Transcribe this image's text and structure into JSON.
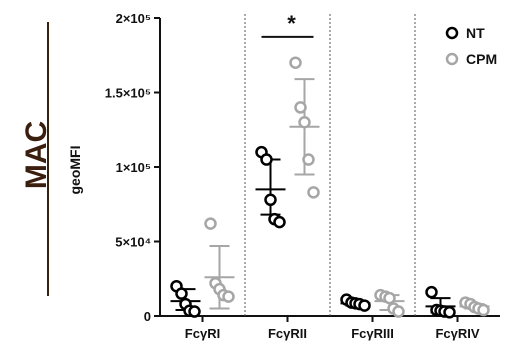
{
  "panel_label": "MAC",
  "chart_data": {
    "type": "scatter",
    "ylabel": "geoMFI",
    "ylim": [
      0,
      200000
    ],
    "yticks": [
      0,
      50000,
      100000,
      150000,
      200000
    ],
    "ytick_labels": [
      "0",
      "5×10⁴",
      "1×10⁵",
      "1.5×10⁵",
      "2×10⁵"
    ],
    "categories": [
      "FcγRI",
      "FcγRII",
      "FcγRIII",
      "FcγRIV"
    ],
    "grid": false,
    "category_dividers": true,
    "legend_position": "top-right",
    "series": [
      {
        "name": "NT",
        "color": "#000000",
        "groups": [
          {
            "points": [
              20000,
              15000,
              8000,
              3500,
              3000
            ],
            "mean": 10000,
            "sd_low": 4000,
            "sd_high": 18000
          },
          {
            "points": [
              110000,
              105000,
              78000,
              65000,
              63000
            ],
            "mean": 85000,
            "sd_low": 68000,
            "sd_high": 105000
          },
          {
            "points": [
              11000,
              9000,
              8500,
              8000,
              7000
            ],
            "mean": 8500,
            "sd_low": 7000,
            "sd_high": 10000
          },
          {
            "points": [
              16000,
              4000,
              3500,
              3000,
              2500
            ],
            "mean": 6500,
            "sd_low": 2500,
            "sd_high": 12000
          }
        ]
      },
      {
        "name": "CPM",
        "color": "#a6a6a6",
        "groups": [
          {
            "points": [
              62000,
              22000,
              18000,
              14000,
              13000
            ],
            "mean": 26000,
            "sd_low": 5000,
            "sd_high": 47000
          },
          {
            "points": [
              170000,
              140000,
              130000,
              105000,
              83000
            ],
            "mean": 127000,
            "sd_low": 95000,
            "sd_high": 159000
          },
          {
            "points": [
              14000,
              13000,
              12000,
              5000,
              3000
            ],
            "mean": 10000,
            "sd_low": 4000,
            "sd_high": 14000
          },
          {
            "points": [
              9000,
              8000,
              6000,
              5000,
              4000
            ],
            "mean": 6500,
            "sd_low": 5000,
            "sd_high": 8000
          }
        ]
      }
    ],
    "annotations": [
      {
        "text": "*",
        "category": "FcγRII",
        "y": 190000
      }
    ]
  }
}
